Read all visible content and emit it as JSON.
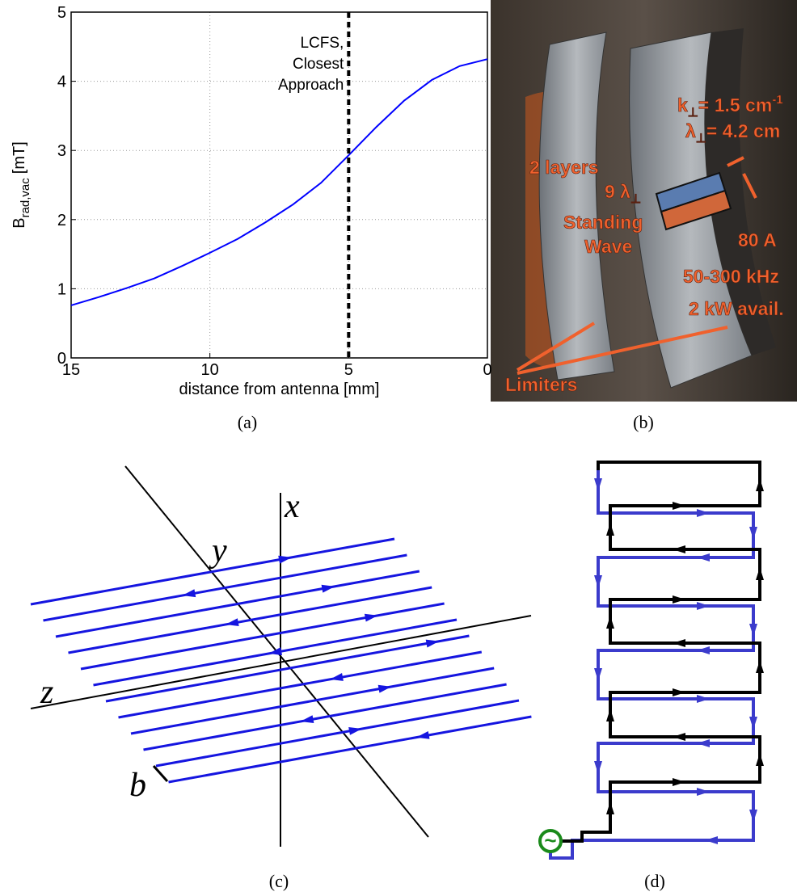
{
  "chart_data": {
    "type": "line",
    "xlabel": "distance from antenna [mm]",
    "ylabel": {
      "main": "B",
      "sub": "rad,vac",
      "unit": "[mT]"
    },
    "x": [
      15,
      14,
      13,
      12,
      11,
      10,
      9,
      8,
      7,
      6,
      5,
      4,
      3,
      2,
      1,
      0
    ],
    "series": [
      {
        "color": "#0000ff",
        "values": [
          0.76,
          0.88,
          1.01,
          1.15,
          1.33,
          1.52,
          1.72,
          1.96,
          2.22,
          2.53,
          2.93,
          3.34,
          3.72,
          4.02,
          4.22,
          4.32
        ]
      }
    ],
    "xlim": [
      15,
      0
    ],
    "ylim": [
      0,
      5
    ],
    "xticks": [
      15,
      10,
      5,
      0
    ],
    "yticks": [
      0,
      1,
      2,
      3,
      4,
      5
    ],
    "grid": true,
    "vline": {
      "x": 5,
      "label": [
        "LCFS,",
        "Closest",
        "Approach"
      ]
    }
  },
  "photo": {
    "k": {
      "main": "k",
      "sub": "⊥",
      "rest": "= 1.5 cm",
      "sup": "-1"
    },
    "lambda": {
      "main": "λ",
      "sub": "⊥",
      "rest": "= 4.2 cm"
    },
    "layers": "2 layers",
    "nine": {
      "main": "9 λ",
      "sub": "⊥"
    },
    "standing": "Standing",
    "wave": "Wave",
    "current": "80 A",
    "freq": "50-300 kHz",
    "power": "2 kW avail.",
    "limiters": "Limiters"
  },
  "diagram_c": {
    "x": "x",
    "y": "y",
    "z": "z",
    "b": "b"
  },
  "diagram_d": {
    "source_symbol": "~"
  },
  "captions": [
    "(a)",
    "(b)",
    "(c)",
    "(d)"
  ]
}
